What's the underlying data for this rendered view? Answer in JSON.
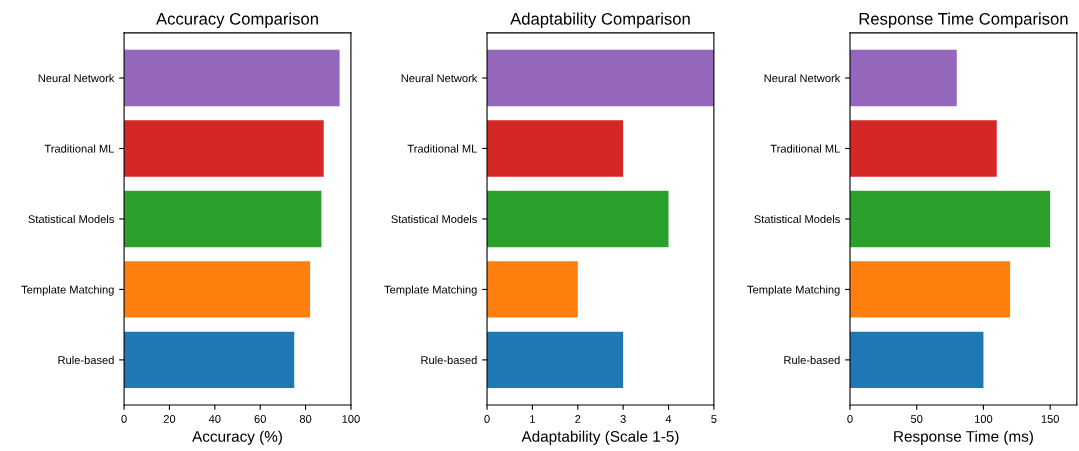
{
  "chart_data": [
    {
      "type": "bar",
      "orientation": "horizontal",
      "title": "Accuracy Comparison",
      "xlabel": "Accuracy (%)",
      "categories": [
        "Neural Network",
        "Traditional ML",
        "Statistical Models",
        "Template Matching",
        "Rule-based"
      ],
      "values": [
        95,
        88,
        87,
        82,
        75
      ],
      "colors": [
        "#9467bd",
        "#d62728",
        "#2ca02c",
        "#ff7f0e",
        "#1f77b4"
      ],
      "xlim": [
        0,
        100
      ],
      "xticks": [
        0,
        20,
        40,
        60,
        80,
        100
      ],
      "grid": false
    },
    {
      "type": "bar",
      "orientation": "horizontal",
      "title": "Adaptability Comparison",
      "xlabel": "Adaptability (Scale 1-5)",
      "categories": [
        "Neural Network",
        "Traditional ML",
        "Statistical Models",
        "Template Matching",
        "Rule-based"
      ],
      "values": [
        5,
        3,
        4,
        2,
        3
      ],
      "colors": [
        "#9467bd",
        "#d62728",
        "#2ca02c",
        "#ff7f0e",
        "#1f77b4"
      ],
      "xlim": [
        0,
        5
      ],
      "xticks": [
        0,
        1,
        2,
        3,
        4,
        5
      ],
      "grid": false
    },
    {
      "type": "bar",
      "orientation": "horizontal",
      "title": "Response Time Comparison",
      "xlabel": "Response Time (ms)",
      "categories": [
        "Neural Network",
        "Traditional ML",
        "Statistical Models",
        "Template Matching",
        "Rule-based"
      ],
      "values": [
        80,
        110,
        150,
        120,
        100
      ],
      "colors": [
        "#9467bd",
        "#d62728",
        "#2ca02c",
        "#ff7f0e",
        "#1f77b4"
      ],
      "xlim": [
        0,
        170
      ],
      "xticks": [
        0,
        50,
        100,
        150
      ],
      "grid": false
    }
  ]
}
